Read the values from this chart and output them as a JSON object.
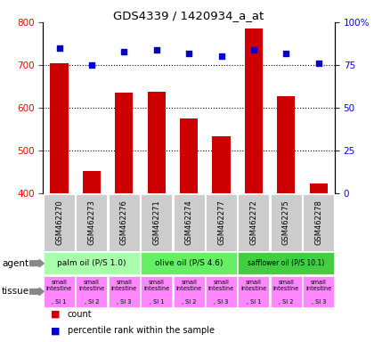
{
  "title": "GDS4339 / 1420934_a_at",
  "samples": [
    "GSM462270",
    "GSM462273",
    "GSM462276",
    "GSM462271",
    "GSM462274",
    "GSM462277",
    "GSM462272",
    "GSM462275",
    "GSM462278"
  ],
  "counts": [
    705,
    452,
    635,
    638,
    575,
    533,
    785,
    627,
    422
  ],
  "percentiles": [
    85,
    75,
    83,
    84,
    82,
    80,
    84,
    82,
    76
  ],
  "ylim_left": [
    400,
    800
  ],
  "ylim_right": [
    0,
    100
  ],
  "yticks_left": [
    400,
    500,
    600,
    700,
    800
  ],
  "yticks_right": [
    0,
    25,
    50,
    75,
    100
  ],
  "bar_color": "#cc0000",
  "dot_color": "#0000cc",
  "agent_labels": [
    "palm oil (P/S 1.0)",
    "olive oil (P/S 4.6)",
    "safflower oil (P/S 10.1)"
  ],
  "agent_groups": [
    3,
    3,
    3
  ],
  "agent_colors": [
    "#99ff99",
    "#66ee66",
    "#44dd44"
  ],
  "tissue_label": "small intestine",
  "tissue_sublabels": [
    ", SI 1",
    ", SI 2",
    ", SI 3"
  ],
  "tissue_color": "#ff88ff",
  "gsm_bg_color": "#cccccc",
  "legend_count_color": "#cc0000",
  "legend_pct_color": "#0000cc",
  "pct_label": "100%",
  "right_ticks_label": [
    "100%",
    "75",
    "50",
    "25",
    "0"
  ]
}
